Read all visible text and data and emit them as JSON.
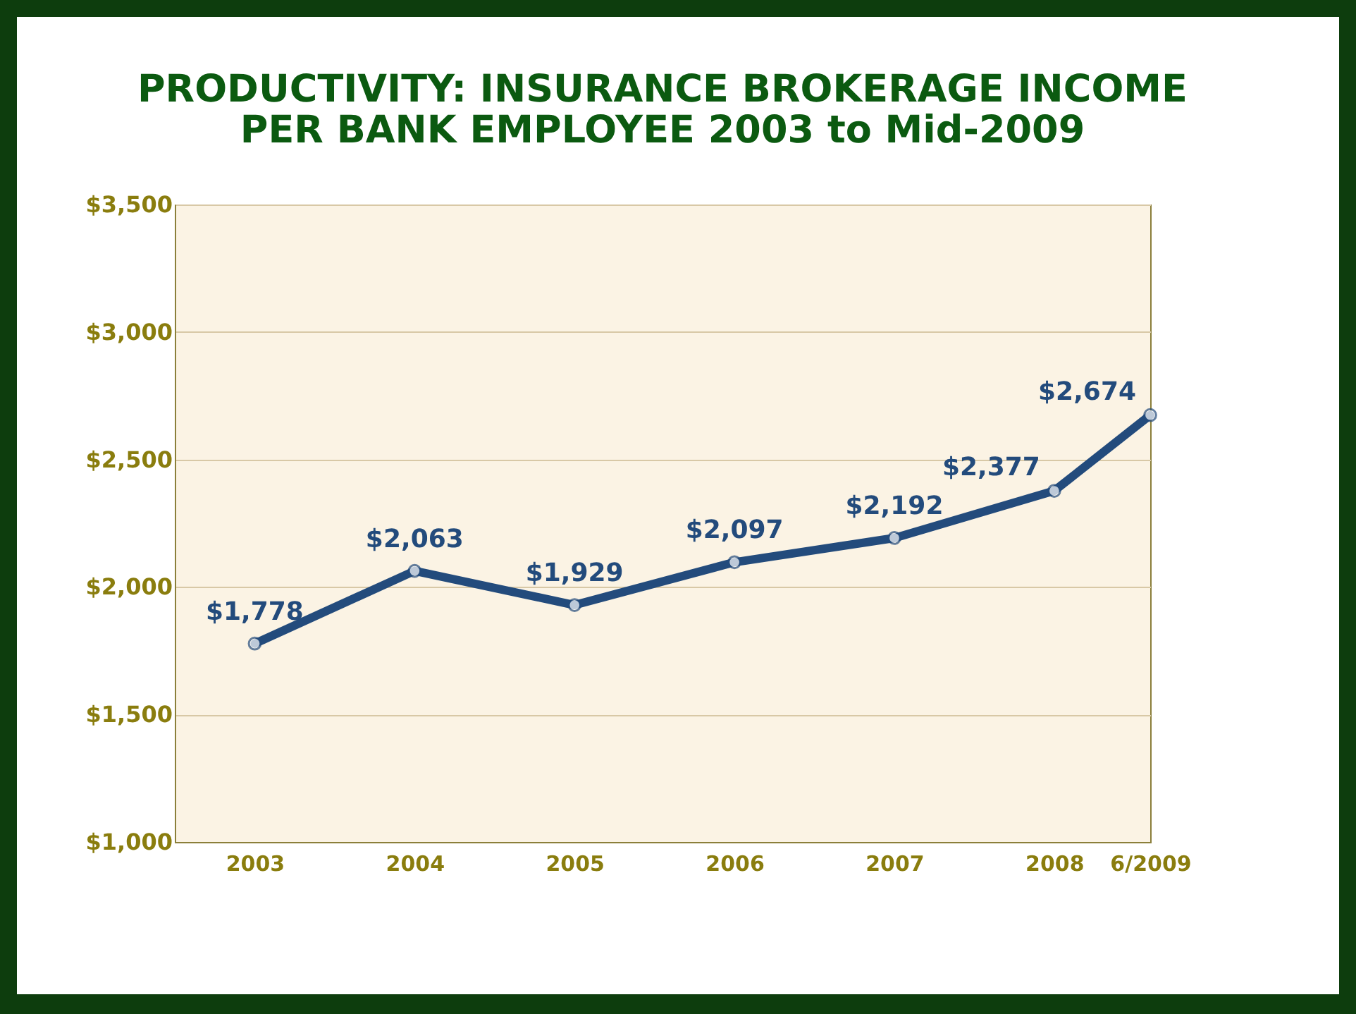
{
  "chart_data": {
    "type": "line",
    "title": "PRODUCTIVITY: INSURANCE BROKERAGE INCOME\nPER BANK EMPLOYEE 2003 to Mid-2009",
    "x": [
      2003,
      2004,
      2005,
      2006,
      2007,
      2008,
      2008.6
    ],
    "series": [
      {
        "color": "#234b7c",
        "values": [
          1778,
          2063,
          1929,
          2097,
          2192,
          2377,
          2674
        ],
        "value_labels": [
          "$1,778",
          "$2,063",
          "$1,929",
          "$2,097",
          "$2,192",
          "$2,377",
          "$2,674"
        ]
      }
    ],
    "xlim": [
      2002.5,
      2008.6
    ],
    "xticks": [
      2003,
      2004,
      2005,
      2006,
      2007,
      2008,
      {
        "value": 2008.6,
        "label": "6/2009"
      }
    ],
    "ylim": [
      1000,
      3500
    ],
    "yticks": [
      {
        "value": 1000,
        "label": "$1,000"
      },
      {
        "value": 1500,
        "label": "$1,500"
      },
      {
        "value": 2000,
        "label": "$2,000"
      },
      {
        "value": 2500,
        "label": "$2,500"
      },
      {
        "value": 3000,
        "label": "$3,000"
      },
      {
        "value": 3500,
        "label": "$3,500"
      }
    ],
    "grid": "y",
    "marker": "circle",
    "line_style": "solid"
  }
}
